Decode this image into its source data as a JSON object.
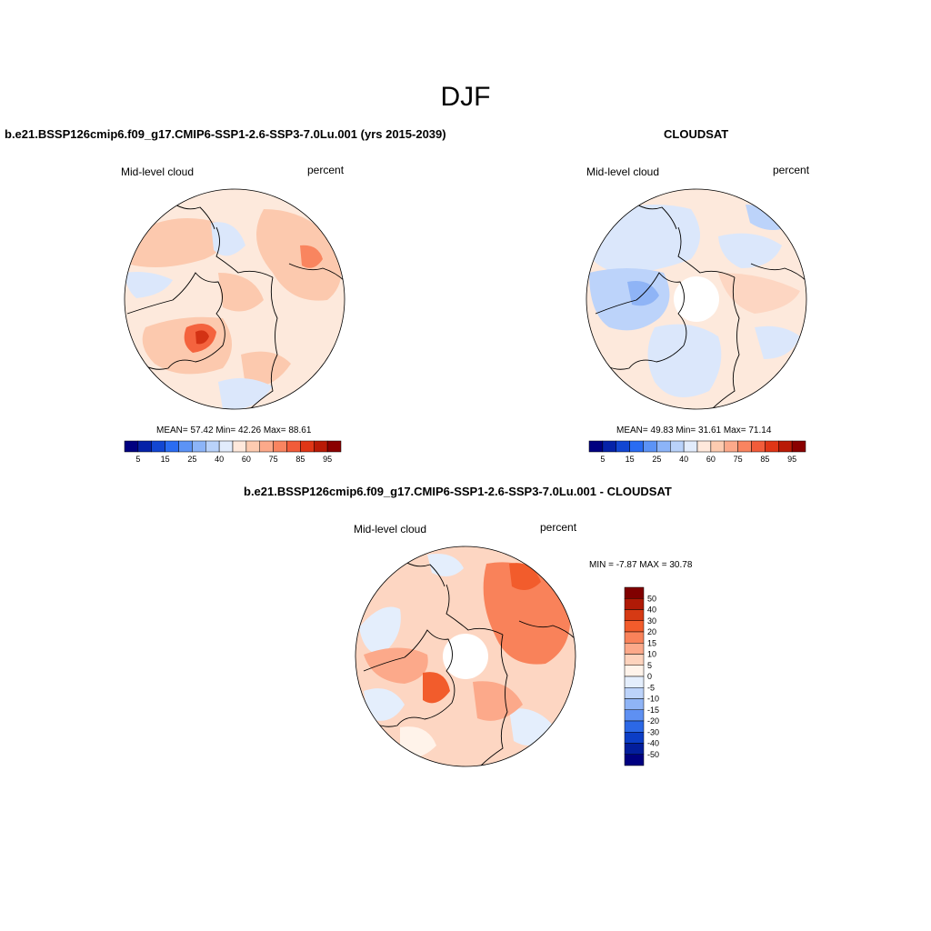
{
  "figure": {
    "title": "DJF"
  },
  "panels": [
    {
      "title": "b.e21.BSSP126cmip6.f09_g17.CMIP6-SSP1-2.6-SSP3-7.0Lu.001 (yrs 2015-2039)",
      "left_label": "Mid-level cloud",
      "right_label": "percent",
      "stats": "MEAN=  57.42  Min=  42.26  Max=  88.61"
    },
    {
      "title": "CLOUDSAT",
      "left_label": "Mid-level cloud",
      "right_label": "percent",
      "stats": "MEAN=  49.83  Min=  31.61  Max=  71.14"
    },
    {
      "title": "b.e21.BSSP126cmip6.f09_g17.CMIP6-SSP1-2.6-SSP3-7.0Lu.001 - CLOUDSAT",
      "left_label": "Mid-level cloud",
      "right_label": "percent",
      "stats": "MIN =  -7.87 MAX =  30.78"
    }
  ],
  "colorbar_abs": {
    "labels": [
      "5",
      "15",
      "25",
      "40",
      "60",
      "75",
      "85",
      "95"
    ],
    "colors": [
      "#000080",
      "#0522a8",
      "#1246d2",
      "#2a6cf2",
      "#5c93f6",
      "#8cb4f8",
      "#b9d2fa",
      "#e2ecfc",
      "#ffe9dc",
      "#fdcbb0",
      "#fca98a",
      "#f98460",
      "#f25c3a",
      "#e03616",
      "#b91a06",
      "#8a0000"
    ]
  },
  "colorbar_diff": {
    "labels": [
      "50",
      "40",
      "30",
      "20",
      "15",
      "10",
      "5",
      "0",
      "-5",
      "-10",
      "-15",
      "-20",
      "-30",
      "-40",
      "-50"
    ],
    "colors": [
      "#800000",
      "#b01a06",
      "#d63a14",
      "#f25c2c",
      "#f9825a",
      "#fca98a",
      "#fdd3bd",
      "#fff3ea",
      "#e4eefc",
      "#bcd3fa",
      "#8fb4f6",
      "#5e90f2",
      "#2c68e6",
      "#0c3ec6",
      "#031e9c",
      "#000080"
    ]
  },
  "maps": {
    "ocean_base_color": "#fde9dc",
    "land_outline_color": "#000000"
  }
}
